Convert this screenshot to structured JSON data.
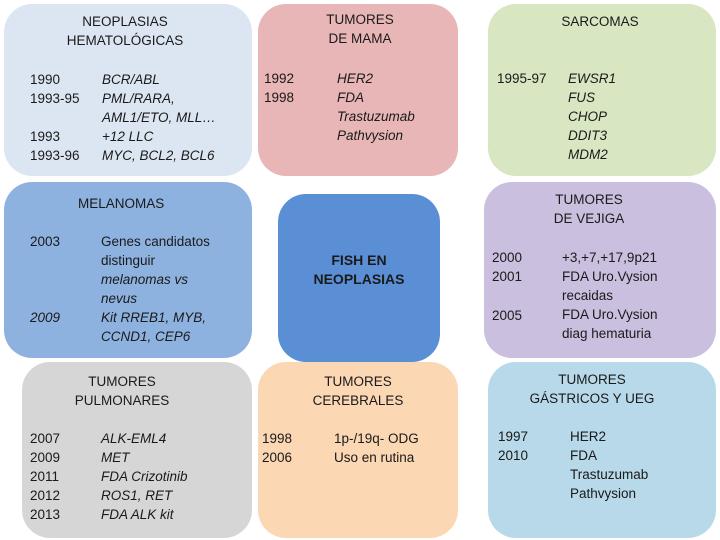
{
  "colors": {
    "hemato": "#dce6f3",
    "mama": "#e8b6b6",
    "sarcomas": "#d8e6c2",
    "melanomas": "#8eb2e0",
    "fish": "#5a8fd6",
    "vejiga": "#cbbfdf",
    "pulmonares": "#d6d6d6",
    "cerebrales": "#fbd7b4",
    "gastricos": "#b7d9e9"
  },
  "hemato": {
    "title": "NEOPLASIAS\nHEMATOLÓGICAS",
    "years": "1990\n1993-95\n\n1993\n1993-96",
    "items": "BCR/ABL\nPML/RARA,\nAML1/ETO, MLL…\n+12 LLC\nMYC, BCL2, BCL6"
  },
  "mama": {
    "title": "TUMORES\nDE MAMA",
    "years": "1992\n1998",
    "items": "HER2\nFDA\nTrastuzumab\nPathvysion"
  },
  "sarcomas": {
    "title": "SARCOMAS",
    "years": "1995-97",
    "items": "EWSR1\nFUS\nCHOP\nDDIT3\nMDM2"
  },
  "melanomas": {
    "title": "MELANOMAS",
    "year1": "2003",
    "year2": "2009",
    "items1": "Genes candidatos\ndistinguir",
    "items2": "melanomas vs\nnevus\nKit RREB1, MYB,\nCCND1, CEP6"
  },
  "center": {
    "title": "FISH EN\nNEOPLASIAS"
  },
  "vejiga": {
    "title": "TUMORES\nDE VEJIGA",
    "years1": "2000\n2001",
    "year2": "2005",
    "items": "+3,+7,+17,9p21\nFDA Uro.Vysion\nrecaidas\nFDA Uro.Vysion\ndiag hematuria"
  },
  "pulmonares": {
    "title": "TUMORES\nPULMONARES",
    "years": "2007\n2009\n2011\n2012\n2013",
    "items": "ALK-EML4\nMET\nFDA Crizotinib\nROS1, RET\nFDA ALK kit"
  },
  "cerebrales": {
    "title": "TUMORES\nCEREBRALES",
    "years": "1998\n2006",
    "items": "1p-/19q- ODG\nUso en rutina"
  },
  "gastricos": {
    "title": "TUMORES\nGÁSTRICOS Y UEG",
    "years": "1997\n2010",
    "items": "HER2\nFDA\nTrastuzumab\nPathvysion"
  }
}
